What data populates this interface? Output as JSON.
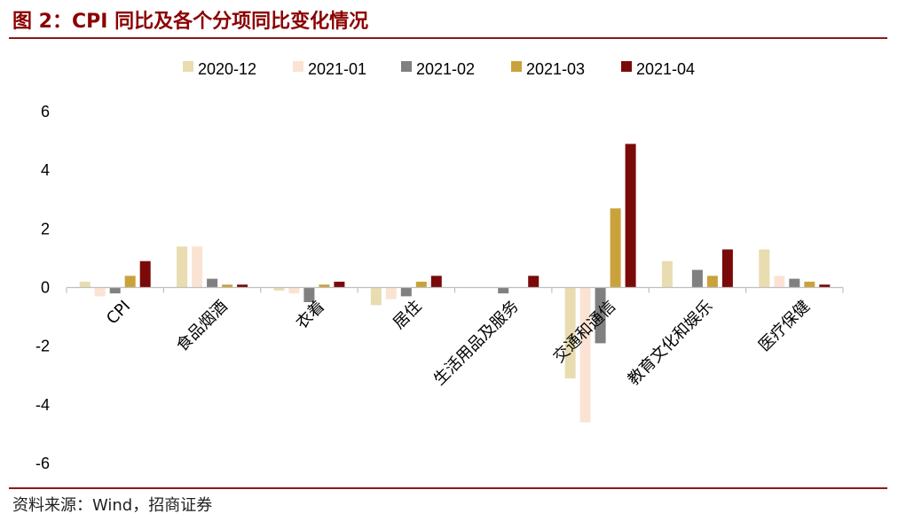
{
  "title": "图 2：CPI 同比及各个分项同比变化情况",
  "source": "资料来源：Wind，招商证券",
  "chart_data": {
    "type": "bar",
    "categories": [
      "CPI",
      "食品烟酒",
      "衣着",
      "居住",
      "生活用品及服务",
      "交通和通信",
      "教育文化和娱乐",
      "医疗保健"
    ],
    "series": [
      {
        "name": "2020-12",
        "color": "#e8dcb0",
        "values": [
          0.2,
          1.4,
          -0.1,
          -0.6,
          0.0,
          -3.1,
          0.9,
          1.3
        ]
      },
      {
        "name": "2021-01",
        "color": "#fbe3d3",
        "values": [
          -0.3,
          1.4,
          -0.2,
          -0.4,
          0.0,
          -4.6,
          0.0,
          0.4
        ]
      },
      {
        "name": "2021-02",
        "color": "#808080",
        "values": [
          -0.2,
          0.3,
          -0.5,
          -0.3,
          -0.2,
          -1.9,
          0.6,
          0.3
        ]
      },
      {
        "name": "2021-03",
        "color": "#c9a23b",
        "values": [
          0.4,
          0.1,
          0.1,
          0.2,
          0.0,
          2.7,
          0.4,
          0.2
        ]
      },
      {
        "name": "2021-04",
        "color": "#7a0a0a",
        "values": [
          0.9,
          0.1,
          0.2,
          0.4,
          0.4,
          4.9,
          1.3,
          0.1
        ]
      }
    ],
    "yticks": [
      6,
      4,
      2,
      0,
      -2,
      -4,
      -6
    ],
    "ylim": [
      -6,
      6
    ],
    "grid": false,
    "legend_position": "top"
  }
}
